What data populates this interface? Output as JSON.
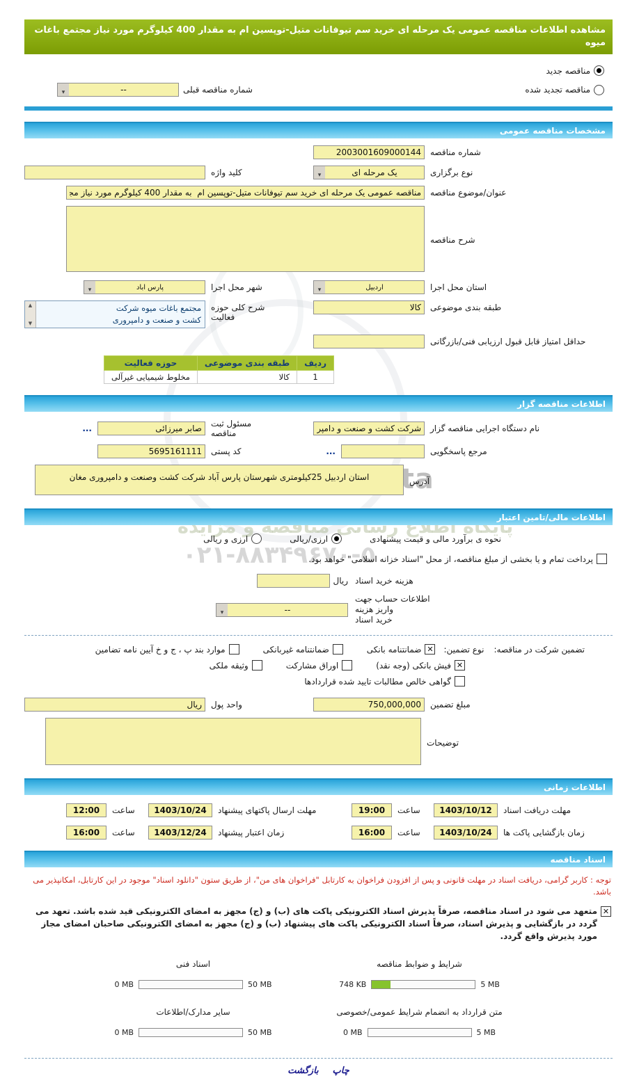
{
  "title": "مشاهده اطلاعات مناقصه عمومی یک مرحله ای خرید سم تیوفانات متیل-توپسین ام به مقدار 400 کیلوگرم مورد نیاز مجتمع باغات میوه",
  "tender_state": {
    "new_label": "مناقصه جدید",
    "new_selected": true,
    "renewed_label": "مناقصه تجدید شده",
    "renewed_selected": false,
    "previous_number_label": "شماره مناقصه قبلی",
    "previous_number_value": "--"
  },
  "sections": {
    "general": "مشخصات مناقصه عمومی",
    "agency": "اطلاعات مناقصه گزار",
    "financial": "اطلاعات مالی/تامین اعتبار",
    "timing": "اطلاعات زمانی",
    "documents": "اسناد مناقصه"
  },
  "general": {
    "tender_number_label": "شماره مناقصه",
    "tender_number": "2003001609000144",
    "process_type_label": "نوع برگزاری",
    "process_type": "یک مرحله ای",
    "keyword_label": "کلید واژه",
    "keyword": "",
    "subject_label": "عنوان/موضوع مناقصه",
    "subject": "مناقصه عمومی یک مرحله ای خرید سم تیوفانات متیل-توپسین ام  به مقدار 400 کیلوگرم مورد نیاز مجت",
    "description_label": "شرح مناقصه",
    "description": "",
    "province_label": "استان محل اجرا",
    "province": "اردبیل",
    "city_label": "شهر محل اجرا",
    "city": "پارس آباد",
    "category_label": "طبقه بندی موضوعی",
    "category": "کالا",
    "activity_label": "شرح کلی حوزه فعالیت",
    "activity_line1": "مجتمع باغات میوه شرکت",
    "activity_line2": "کشت و صنعت و دامپروری",
    "min_score_label": "حداقل امتیاز قابل قبول ارزیابی فنی/بازرگانی",
    "min_score": "",
    "table": {
      "headers": [
        "ردیف",
        "طبقه بندی موضوعی",
        "حوزه فعالیت"
      ],
      "rows": [
        [
          "1",
          "کالا",
          "مخلوط شیمیایی غیرآلی"
        ]
      ]
    }
  },
  "agency": {
    "name_label": "نام دستگاه اجرایی مناقصه گزار",
    "name": "شرکت کشت و صنعت و دامپر",
    "registrar_label": "مسئول ثبت مناقصه",
    "registrar": "صابر میرزائی",
    "registrar_more": "...",
    "contact_label": "مرجع پاسخگویی",
    "contact": "",
    "contact_more": "...",
    "postal_label": "کد پستی",
    "postal": "5695161111",
    "address_label": "آدرس",
    "address": "استان اردبیل 25کیلومتری شهرستان پارس آباد شرکت کشت وصنعت و دامپروری مغان"
  },
  "financial": {
    "estimate_label": "نحوه ی برآورد مالی و قیمت پیشنهادی",
    "rial_option": "ارزی/ریالی",
    "rial_selected": true,
    "currency_option": "ارزی و ریالی",
    "currency_selected": false,
    "treasury_note": "پرداخت تمام و یا بخشی از مبلغ مناقصه، از محل \"اسناد خزانه اسلامی\" خواهد بود.",
    "treasury_checked": false,
    "doc_fee_label": "هزینه خرید اسناد",
    "doc_fee_unit": "ریال",
    "doc_fee": "",
    "account_label_line1": "اطلاعات حساب جهت واریز هزینه",
    "account_label_line2": "خرید اسناد",
    "account_value": "--",
    "guarantee_label": "تضمین شرکت در مناقصه:",
    "guarantee_type_label": "نوع تضمین:",
    "opts": [
      {
        "label": "ضمانتنامه بانکی",
        "checked": true
      },
      {
        "label": "ضمانتنامه غیربانکی",
        "checked": false
      },
      {
        "label": "موارد بند پ ، ج و خ آیین نامه تضامین",
        "checked": false
      },
      {
        "label": "فیش بانکی (وجه نقد)",
        "checked": true
      },
      {
        "label": "اوراق مشارکت",
        "checked": false
      },
      {
        "label": "وثیقه ملکی",
        "checked": false
      },
      {
        "label": "گواهی خالص مطالبات تایید شده قراردادها",
        "checked": false
      }
    ],
    "amount_label": "مبلغ تضمین",
    "amount": "750,000,000",
    "currency_label": "واحد پول",
    "currency": "ریال",
    "notes_label": "توضیحات",
    "notes": ""
  },
  "timing": {
    "hour_label": "ساعت",
    "items": [
      {
        "label": "مهلت دریافت اسناد",
        "date": "1403/10/12",
        "time": "19:00"
      },
      {
        "label": "مهلت ارسال پاکتهای پیشنهاد",
        "date": "1403/10/24",
        "time": "12:00"
      },
      {
        "label": "زمان بازگشایی پاکت ها",
        "date": "1403/10/24",
        "time": "16:00"
      },
      {
        "label": "زمان اعتبار پیشنهاد",
        "date": "1403/12/24",
        "time": "16:00"
      }
    ]
  },
  "documents": {
    "notice": "توجه : کاربر گرامی، دریافت اسناد در مهلت قانونی و پس از افزودن فراخوان به کارتابل \"فراخوان های من\"، از طریق ستون \"دانلود اسناد\" موجود در این کارتابل، امکانپذیر می باشد.",
    "commitment": "متعهد می شود در اسناد مناقصه، صرفاً پذیرش اسناد الکترونیکی پاکت های (ب) و (ج) مجهز به امضای الکترونیکی قید شده باشد. تعهد می گردد در بازگشایی و پذیرش اسناد، صرفاً اسناد الکترونیکی پاکت های پیشنهاد (ب) و (ج) مجهز به امضای الکترونیکی صاحبان امضای مجاز مورد پذیرش واقع گردد.",
    "commitment_checked": true,
    "uploads": [
      {
        "label": "شرایط و ضوابط مناقصه",
        "current": "748 KB",
        "max": "5 MB",
        "fill": 0.18
      },
      {
        "label": "اسناد فنی",
        "current": "0 MB",
        "max": "50 MB",
        "fill": 0
      },
      {
        "label": "متن قرارداد به انضمام شرایط عمومی/خصوصی",
        "current": "0 MB",
        "max": "5 MB",
        "fill": 0
      },
      {
        "label": "سایر مدارک/اطلاعات",
        "current": "0 MB",
        "max": "50 MB",
        "fill": 0
      }
    ]
  },
  "footer": {
    "print_label": "چاپ",
    "back_label": "بازگشت"
  },
  "watermark": {
    "brand": "ParsNamadData",
    "tagline": "پایگاه اطلاع رسانی مناقصه و مزایده",
    "phone": "۰۲۱-۸۸۳۴۹۶۷۰-۵"
  },
  "colors": {
    "title_bar": "#85a60c",
    "section_header": "#2fa8da",
    "input_bg": "#f6f2ab",
    "table_header_bg": "#a6c12f",
    "notice_red": "#cc2a1f",
    "link_blue": "#00318c",
    "progress_fill": "#86c32e"
  }
}
